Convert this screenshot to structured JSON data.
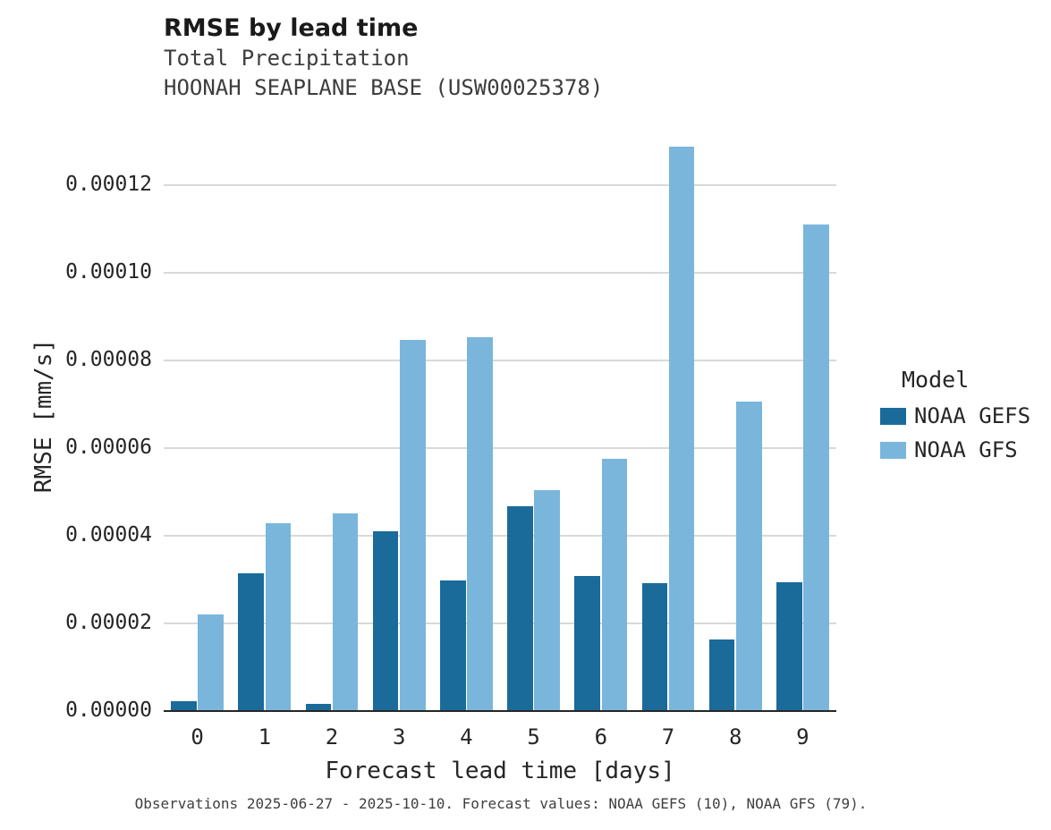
{
  "chart_data": {
    "type": "bar",
    "title": "RMSE by lead time",
    "subtitle1": "Total Precipitation",
    "subtitle2": "HOONAH SEAPLANE BASE (USW00025378)",
    "xlabel": "Forecast lead time [days]",
    "ylabel": "RMSE [mm/s]",
    "categories": [
      "0",
      "1",
      "2",
      "3",
      "4",
      "5",
      "6",
      "7",
      "8",
      "9"
    ],
    "series": [
      {
        "name": "NOAA GEFS",
        "color": "#1a6b9a",
        "values": [
          2.2e-06,
          3.15e-05,
          1.6e-06,
          4.1e-05,
          2.97e-05,
          4.68e-05,
          3.08e-05,
          2.91e-05,
          1.63e-05,
          2.93e-05
        ]
      },
      {
        "name": "NOAA GFS",
        "color": "#7ab6db",
        "values": [
          2.21e-05,
          4.28e-05,
          4.51e-05,
          8.47e-05,
          8.53e-05,
          5.04e-05,
          5.75e-05,
          0.0001287,
          7.05e-05,
          0.000111
        ]
      }
    ],
    "ylim": [
      0,
      0.000135
    ],
    "yticks": [
      0,
      2e-05,
      4e-05,
      6e-05,
      8e-05,
      0.0001,
      0.00012
    ],
    "ytick_labels": [
      "0.00000",
      "0.00002",
      "0.00004",
      "0.00006",
      "0.00008",
      "0.00010",
      "0.00012"
    ],
    "grid": true,
    "legend_title": "Model",
    "legend_position": "right",
    "caption": "Observations 2025-06-27 - 2025-10-10. Forecast values: NOAA GEFS (10), NOAA GFS (79)."
  }
}
